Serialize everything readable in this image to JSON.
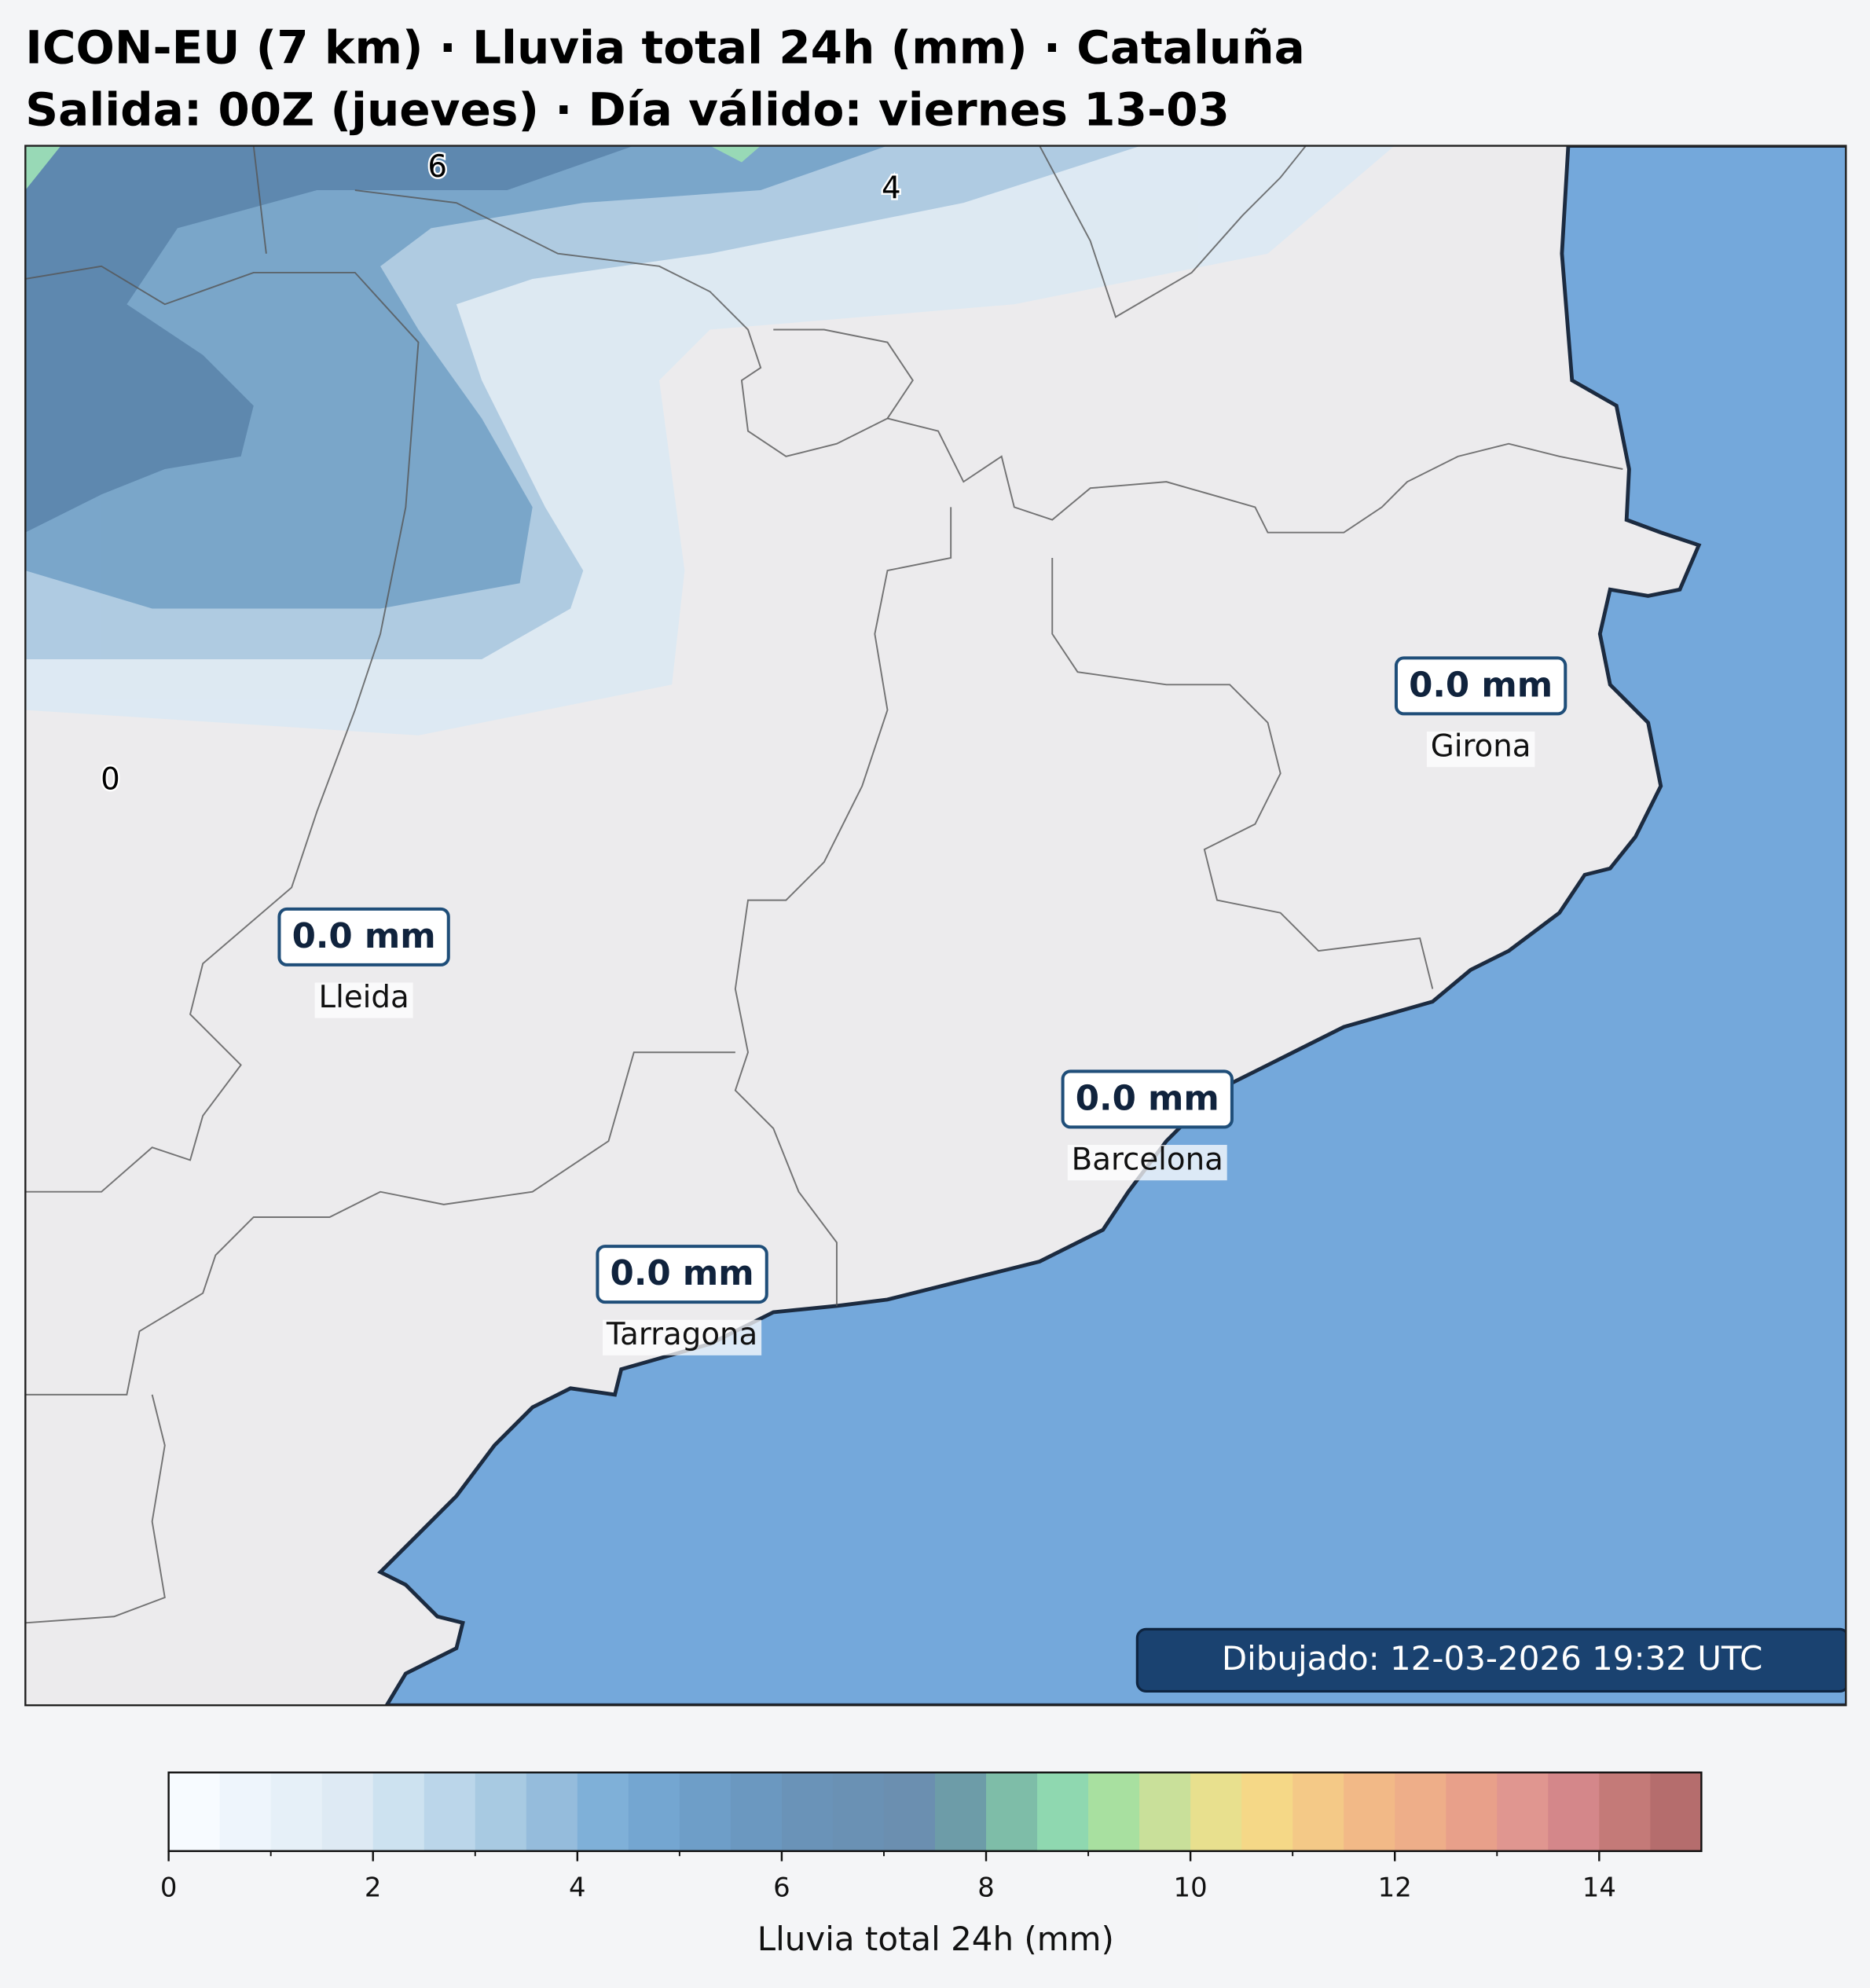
{
  "header": {
    "title": "ICON-EU (7 km) · Lluvia total 24h (mm) · Cataluña",
    "subtitle": "Salida: 00Z (jueves) · Día válido: viernes 13-03"
  },
  "map": {
    "contour_labels": [
      "6",
      "4",
      "0"
    ],
    "cities": [
      {
        "name": "Girona",
        "value_label": "0.0 mm"
      },
      {
        "name": "Lleida",
        "value_label": "0.0 mm"
      },
      {
        "name": "Barcelona",
        "value_label": "0.0 mm"
      },
      {
        "name": "Tarragona",
        "value_label": "0.0 mm"
      }
    ],
    "timestamp": "Dibujado: 12-03-2026 19:32 UTC"
  },
  "colorbar": {
    "label": "Lluvia total 24h (mm)",
    "lim": [
      0,
      15
    ],
    "ticks": [
      0,
      2,
      4,
      6,
      8,
      10,
      12,
      14
    ],
    "minor_ticks": [
      1,
      3,
      5,
      7,
      9,
      11,
      13
    ],
    "colors": [
      "#f7fbff",
      "#eef5fc",
      "#e6f0f8",
      "#deeaf4",
      "#cde2f0",
      "#bbd6ea",
      "#a8cae2",
      "#95bcdc",
      "#7fb0d8",
      "#74a6d1",
      "#6e9ec8",
      "#6b98c0",
      "#6a93b8",
      "#6a91b4",
      "#6b8fb0",
      "#6d9ca8",
      "#7ebda8",
      "#8fd8b0",
      "#a8e0a0",
      "#c9e09a",
      "#e8e08e",
      "#f5d887",
      "#f4c987",
      "#f2b987",
      "#eeae89",
      "#e8a08a",
      "#e09690",
      "#d4878a",
      "#c47a78",
      "#b56d6d"
    ]
  }
}
